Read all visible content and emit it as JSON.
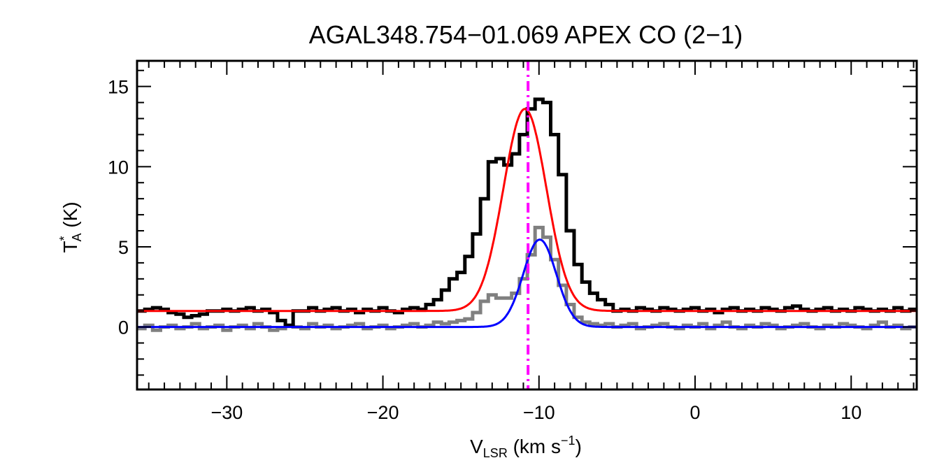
{
  "chart_data": {
    "type": "line",
    "title": "AGAL348.754−01.069  APEX CO (2−1)",
    "xlabel": {
      "main": "V",
      "sub": "LSR",
      "rest": " (km s",
      "sup": "−1",
      "close": ")"
    },
    "ylabel": {
      "main": "T",
      "sup": "*",
      "sub": "A",
      "rest": " (K)"
    },
    "xlim": [
      -35.75,
      14.2
    ],
    "ylim": [
      -3.9,
      16.6
    ],
    "xticks": [
      -30,
      -20,
      -10,
      0,
      10
    ],
    "xtick_labels": [
      "−30",
      "−20",
      "−10",
      "0",
      "10"
    ],
    "yticks": [
      0,
      5,
      10,
      15
    ],
    "ytick_labels": [
      "0",
      "5",
      "10",
      "15"
    ],
    "x_minor_step": 1,
    "y_minor_step": 1,
    "grid": false,
    "x_start": -35.75,
    "x_step": 0.5,
    "series": [
      {
        "kind": "histogram",
        "color": "#000000",
        "values": [
          1.0,
          1.1,
          1.2,
          1.1,
          0.9,
          0.8,
          0.6,
          0.7,
          0.8,
          1.0,
          1.0,
          1.1,
          1.0,
          1.1,
          1.2,
          1.0,
          1.1,
          0.9,
          0.4,
          0.1,
          1.0,
          1.0,
          1.2,
          1.0,
          1.1,
          1.2,
          1.0,
          1.1,
          0.9,
          1.1,
          1.0,
          1.2,
          1.0,
          0.9,
          1.1,
          1.2,
          1.1,
          1.4,
          1.7,
          2.3,
          3.0,
          3.4,
          4.4,
          5.8,
          8.0,
          10.3,
          10.5,
          10.1,
          10.8,
          12.0,
          13.6,
          14.2,
          14.0,
          12.0,
          9.5,
          6.0,
          3.9,
          2.8,
          2.1,
          1.7,
          1.4,
          1.0,
          1.1,
          1.0,
          1.2,
          1.1,
          1.0,
          1.2,
          1.1,
          1.0,
          1.1,
          1.2,
          1.0,
          1.1,
          0.9,
          1.1,
          1.2,
          1.0,
          1.1,
          1.0,
          1.2,
          1.1,
          1.0,
          1.2,
          1.3,
          1.1,
          1.0,
          1.1,
          1.2,
          1.0,
          1.1,
          1.0,
          1.2,
          1.1,
          1.0,
          1.1,
          1.0,
          1.2,
          1.0,
          1.1
        ]
      },
      {
        "kind": "histogram",
        "color": "#808080",
        "values": [
          -0.1,
          0.1,
          -0.2,
          0.0,
          0.1,
          -0.1,
          0.0,
          0.2,
          -0.1,
          0.0,
          0.1,
          -0.2,
          0.0,
          0.1,
          -0.1,
          0.2,
          0.0,
          -0.2,
          -0.1,
          0.1,
          0.0,
          -0.1,
          0.2,
          0.0,
          0.1,
          -0.1,
          0.0,
          0.1,
          0.2,
          -0.1,
          0.0,
          0.1,
          -0.1,
          0.0,
          0.1,
          0.2,
          0.0,
          0.1,
          0.3,
          0.2,
          0.3,
          0.4,
          0.5,
          0.9,
          1.6,
          2.0,
          1.8,
          1.8,
          2.1,
          3.0,
          4.5,
          6.2,
          5.6,
          4.2,
          2.6,
          1.4,
          0.6,
          0.3,
          0.2,
          0.1,
          0.2,
          0.0,
          0.1,
          0.2,
          -0.1,
          0.0,
          0.1,
          0.2,
          0.0,
          -0.1,
          0.1,
          0.0,
          0.2,
          -0.1,
          0.1,
          0.3,
          0.0,
          -0.1,
          0.1,
          0.0,
          0.2,
          0.1,
          -0.1,
          0.0,
          0.1,
          0.2,
          0.0,
          -0.1,
          0.1,
          0.0,
          0.2,
          0.1,
          0.0,
          -0.1,
          0.1,
          0.3,
          0.0,
          0.1,
          -0.1,
          0.0
        ]
      },
      {
        "kind": "gaussian-fit",
        "color": "#ff0000",
        "amplitude": 12.6,
        "center": -10.9,
        "sigma": 1.38,
        "offset": 1.0
      },
      {
        "kind": "gaussian-fit",
        "color": "#0000ff",
        "amplitude": 5.45,
        "center": -9.95,
        "sigma": 1.06,
        "offset": 0.0
      }
    ],
    "vertical_line": {
      "x": -10.7,
      "color": "#ff00ff",
      "style": "dash-dot"
    }
  }
}
